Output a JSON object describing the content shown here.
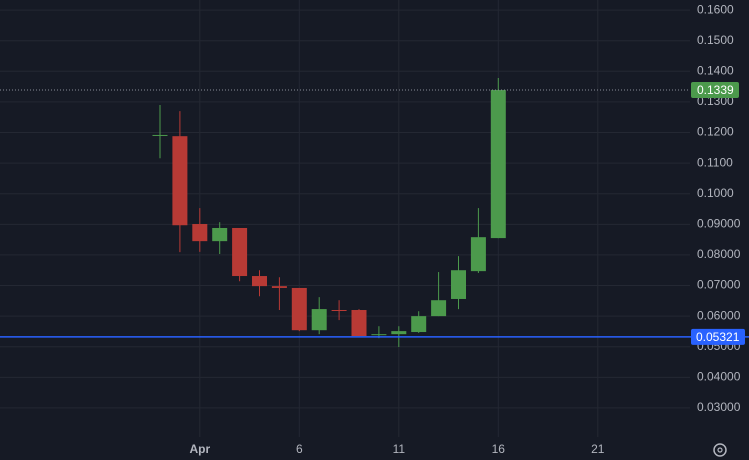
{
  "chart_data": {
    "type": "candlestick",
    "categories": [
      null,
      null,
      "Apr",
      null,
      null,
      null,
      null,
      "6",
      null,
      null,
      null,
      null,
      "11",
      null,
      null,
      null,
      null,
      "16",
      null,
      null,
      null,
      null,
      "21",
      null,
      null,
      null,
      null
    ],
    "series": [
      {
        "up_color": "#4c9a4c",
        "down_color": "#b83a35",
        "open": [
          0.119,
          0.1188,
          0.0901,
          0.0845,
          0.0888,
          0.0731,
          0.0698,
          0.0692,
          0.0554,
          0.062,
          0.062,
          0.0538,
          0.0541,
          0.0548,
          0.06,
          0.0656,
          0.0747,
          0.0855,
          null,
          null,
          null,
          null,
          null,
          null,
          null,
          null,
          null
        ],
        "high": [
          0.129,
          0.127,
          0.0953,
          0.0907,
          0.0888,
          0.075,
          0.0727,
          0.0692,
          0.0662,
          0.0652,
          0.0623,
          0.0567,
          0.0567,
          0.0616,
          0.0744,
          0.0796,
          0.0953,
          0.1378,
          null,
          null,
          null,
          null,
          null,
          null,
          null,
          null,
          null
        ],
        "low": [
          0.1116,
          0.0809,
          0.081,
          0.0803,
          0.0714,
          0.0665,
          0.062,
          0.0551,
          0.0541,
          0.0587,
          0.0535,
          0.0528,
          0.0499,
          0.0545,
          0.06,
          0.0623,
          0.0741,
          0.0855,
          null,
          null,
          null,
          null,
          null,
          null,
          null,
          null,
          null
        ],
        "close": [
          0.1192,
          0.0897,
          0.0845,
          0.0888,
          0.0731,
          0.0698,
          0.0692,
          0.0554,
          0.0623,
          0.0617,
          0.0535,
          0.0541,
          0.0551,
          0.06,
          0.0652,
          0.075,
          0.0858,
          0.1339,
          null,
          null,
          null,
          null,
          null,
          null,
          null,
          null,
          null
        ]
      }
    ],
    "ylim": [
      0.0205,
      0.1633
    ],
    "yticks": [
      {
        "value": 0.03,
        "label": "0.03000"
      },
      {
        "value": 0.04,
        "label": "0.04000"
      },
      {
        "value": 0.05,
        "label": "0.05000"
      },
      {
        "value": 0.06,
        "label": "0.06000"
      },
      {
        "value": 0.07,
        "label": "0.07000"
      },
      {
        "value": 0.08,
        "label": "0.08000"
      },
      {
        "value": 0.09,
        "label": "0.09000"
      },
      {
        "value": 0.1,
        "label": "0.1000"
      },
      {
        "value": 0.11,
        "label": "0.1100"
      },
      {
        "value": 0.12,
        "label": "0.1200"
      },
      {
        "value": 0.13,
        "label": "0.1300"
      },
      {
        "value": 0.14,
        "label": "0.1400"
      },
      {
        "value": 0.15,
        "label": "0.1500"
      },
      {
        "value": 0.16,
        "label": "0.1600"
      }
    ],
    "grid": true,
    "last_price": {
      "value": 0.1339,
      "color": "#4c9a4c"
    },
    "hline": {
      "value": 0.05321,
      "color": "#2962ff"
    }
  }
}
